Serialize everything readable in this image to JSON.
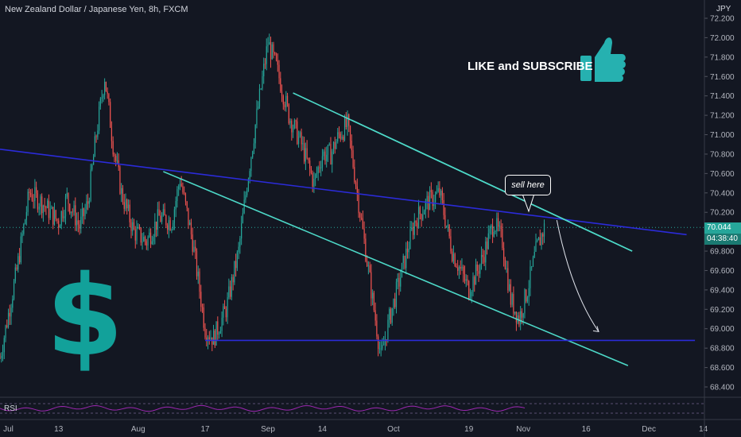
{
  "header": {
    "title": "New Zealand Dollar / Japanese Yen, 8h, FXCM",
    "currency": "JPY"
  },
  "annotations": {
    "promo_text": "LIKE and SUBSCRIBE",
    "callout_text": "sell here",
    "rsi_label": "RSI",
    "dollar_sign": "$"
  },
  "price_badge": {
    "price": "70.044",
    "timer": "04:38:40"
  },
  "colors": {
    "up": "#26a69a",
    "down": "#ef5350",
    "trendline": "#2b2bd9",
    "channel": "#4dd9c8",
    "support": "#2b2bd9",
    "rsi": "#9c27b0",
    "dollar": "#12a19a",
    "thumb": "#26b1b0"
  },
  "chart_data": {
    "type": "candlestick",
    "y_axis": {
      "ticks": [
        "72.200",
        "72.000",
        "71.800",
        "71.600",
        "71.400",
        "71.200",
        "71.000",
        "70.800",
        "70.600",
        "70.400",
        "70.200",
        "70.000",
        "69.800",
        "69.600",
        "69.400",
        "69.200",
        "69.000",
        "68.800",
        "68.600",
        "68.400"
      ],
      "ylim": [
        68.3,
        72.3
      ]
    },
    "x_axis": {
      "ticks": [
        "Jul",
        "13",
        "Aug",
        "17",
        "Sep",
        "14",
        "Oct",
        "19",
        "Nov",
        "16",
        "Dec",
        "14"
      ],
      "tick_dates": [
        "2020-07-01",
        "2020-07-13",
        "2020-08-01",
        "2020-08-17",
        "2020-09-01",
        "2020-09-14",
        "2020-10-01",
        "2020-10-19",
        "2020-11-01",
        "2020-11-16",
        "2020-12-01",
        "2020-12-14"
      ],
      "xlim": [
        "2020-06-29",
        "2020-12-23"
      ]
    },
    "price_path": [
      [
        "2020-06-29",
        68.7
      ],
      [
        "2020-07-03",
        69.6
      ],
      [
        "2020-07-06",
        70.4
      ],
      [
        "2020-07-09",
        70.3
      ],
      [
        "2020-07-13",
        70.1
      ],
      [
        "2020-07-15",
        70.35
      ],
      [
        "2020-07-18",
        70.05
      ],
      [
        "2020-07-20",
        70.3
      ],
      [
        "2020-07-22",
        71.0
      ],
      [
        "2020-07-24",
        71.6
      ],
      [
        "2020-07-26",
        70.9
      ],
      [
        "2020-07-28",
        70.4
      ],
      [
        "2020-07-31",
        70.0
      ],
      [
        "2020-08-03",
        69.9
      ],
      [
        "2020-08-06",
        70.15
      ],
      [
        "2020-08-09",
        70.1
      ],
      [
        "2020-08-11",
        70.55
      ],
      [
        "2020-08-14",
        69.9
      ],
      [
        "2020-08-17",
        69.0
      ],
      [
        "2020-08-19",
        68.9
      ],
      [
        "2020-08-22",
        69.2
      ],
      [
        "2020-08-25",
        69.8
      ],
      [
        "2020-08-27",
        70.5
      ],
      [
        "2020-08-29",
        71.1
      ],
      [
        "2020-09-01",
        71.95
      ],
      [
        "2020-09-03",
        71.7
      ],
      [
        "2020-09-06",
        71.2
      ],
      [
        "2020-09-09",
        70.9
      ],
      [
        "2020-09-12",
        70.5
      ],
      [
        "2020-09-14",
        70.8
      ],
      [
        "2020-09-16",
        70.8
      ],
      [
        "2020-09-18",
        71.0
      ],
      [
        "2020-09-20",
        71.1
      ],
      [
        "2020-09-22",
        70.5
      ],
      [
        "2020-09-24",
        69.9
      ],
      [
        "2020-09-26",
        69.3
      ],
      [
        "2020-09-28",
        68.7
      ],
      [
        "2020-09-30",
        69.1
      ],
      [
        "2020-10-03",
        69.6
      ],
      [
        "2020-10-06",
        70.1
      ],
      [
        "2020-10-09",
        70.3
      ],
      [
        "2020-10-12",
        70.4
      ],
      [
        "2020-10-15",
        69.8
      ],
      [
        "2020-10-19",
        69.4
      ],
      [
        "2020-10-22",
        69.7
      ],
      [
        "2020-10-25",
        70.1
      ],
      [
        "2020-10-27",
        69.9
      ],
      [
        "2020-10-29",
        69.3
      ],
      [
        "2020-10-31",
        69.1
      ],
      [
        "2020-11-02",
        69.4
      ],
      [
        "2020-11-04",
        69.8
      ],
      [
        "2020-11-06",
        70.04
      ]
    ],
    "lines": [
      {
        "name": "descending-trendline",
        "points": [
          [
            "2020-06-29",
            70.85
          ],
          [
            "2020-12-10",
            69.97
          ]
        ]
      },
      {
        "name": "channel-upper",
        "points": [
          [
            "2020-09-07",
            71.43
          ],
          [
            "2020-11-27",
            69.8
          ]
        ]
      },
      {
        "name": "channel-lower",
        "points": [
          [
            "2020-08-07",
            70.62
          ],
          [
            "2020-11-26",
            68.62
          ]
        ]
      },
      {
        "name": "channel-mid-upper",
        "points": [
          [
            "2020-09-21",
            71.15
          ],
          [
            "2020-11-27",
            69.8
          ]
        ]
      },
      {
        "name": "support",
        "points": [
          [
            "2020-08-17",
            68.88
          ],
          [
            "2020-12-12",
            68.88
          ]
        ]
      }
    ],
    "forecast_arrow": [
      [
        "2020-11-09",
        70.12
      ],
      [
        "2020-11-19",
        68.97
      ]
    ],
    "rsi": {
      "label": "RSI"
    }
  }
}
